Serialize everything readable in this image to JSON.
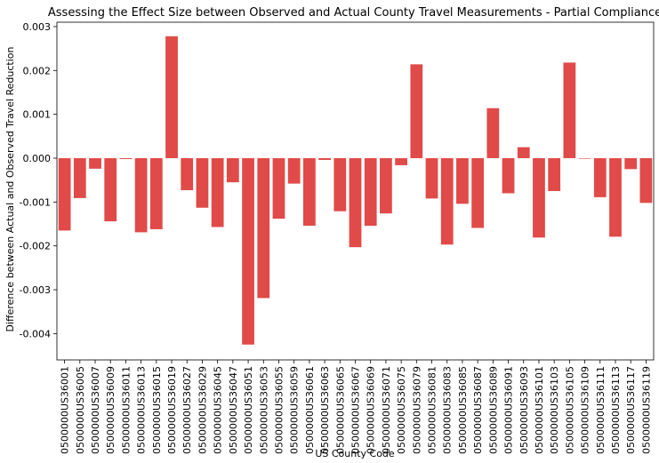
{
  "chart_data": {
    "type": "bar",
    "title": "Assessing the Effect Size between Observed and Actual County Travel Measurements - Partial Compliance",
    "xlabel": "US County Code",
    "ylabel": "Difference between Actual and Observed Travel Reduction",
    "ylim": [
      -0.0046,
      0.0031
    ],
    "yticks": [
      -0.004,
      -0.003,
      -0.002,
      -0.001,
      0.0,
      0.001,
      0.002,
      0.003
    ],
    "ytick_labels": [
      "-0.004",
      "-0.003",
      "-0.002",
      "-0.001",
      "0.000",
      "0.001",
      "0.002",
      "0.003"
    ],
    "grid": false,
    "bar_color": "#e04a48",
    "categories": [
      "0500000US36001",
      "0500000US36005",
      "0500000US36007",
      "0500000US36009",
      "0500000US36011",
      "0500000US36013",
      "0500000US36015",
      "0500000US36019",
      "0500000US36027",
      "0500000US36029",
      "0500000US36045",
      "0500000US36047",
      "0500000US36051",
      "0500000US36053",
      "0500000US36055",
      "0500000US36059",
      "0500000US36061",
      "0500000US36063",
      "0500000US36065",
      "0500000US36067",
      "0500000US36069",
      "0500000US36071",
      "0500000US36075",
      "0500000US36079",
      "0500000US36081",
      "0500000US36083",
      "0500000US36085",
      "0500000US36087",
      "0500000US36089",
      "0500000US36091",
      "0500000US36093",
      "0500000US36101",
      "0500000US36103",
      "0500000US36105",
      "0500000US36109",
      "0500000US36111",
      "0500000US36113",
      "0500000US36117",
      "0500000US36119"
    ],
    "values": [
      -0.00165,
      -0.00091,
      -0.00024,
      -0.00144,
      -2e-05,
      -0.00169,
      -0.00162,
      0.00278,
      -0.00073,
      -0.00113,
      -0.00157,
      -0.00055,
      -0.00425,
      -0.00319,
      -0.00138,
      -0.00058,
      -0.00154,
      -4e-05,
      -0.00121,
      -0.00203,
      -0.00154,
      -0.00126,
      -0.00016,
      0.00214,
      -0.00092,
      -0.00197,
      -0.00104,
      -0.00159,
      0.00114,
      -0.0008,
      0.00025,
      -0.00181,
      -0.00075,
      0.00218,
      0.0,
      -0.00089,
      -0.00179,
      -0.00025,
      -0.00102
    ]
  }
}
